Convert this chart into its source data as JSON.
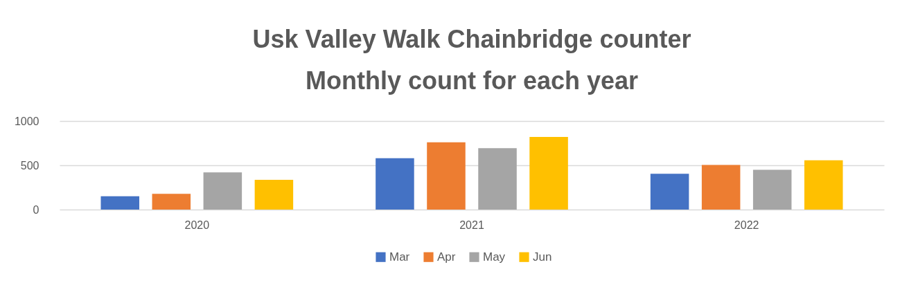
{
  "chart_data": {
    "type": "bar",
    "title": [
      "Usk Valley Walk Chainbridge counter",
      "Monthly count for each year"
    ],
    "categories": [
      "2020",
      "2021",
      "2022"
    ],
    "series": [
      {
        "name": "Mar",
        "color": "#4472c4",
        "values": [
          150,
          580,
          405
        ]
      },
      {
        "name": "Apr",
        "color": "#ed7d31",
        "values": [
          177,
          760,
          503
        ]
      },
      {
        "name": "May",
        "color": "#a5a5a5",
        "values": [
          420,
          693,
          450
        ]
      },
      {
        "name": "Jun",
        "color": "#ffc000",
        "values": [
          336,
          820,
          557
        ]
      }
    ],
    "ylim": [
      0,
      1000
    ],
    "yticks": [
      0,
      500,
      1000
    ],
    "grid": "y",
    "legend": "bottom"
  }
}
